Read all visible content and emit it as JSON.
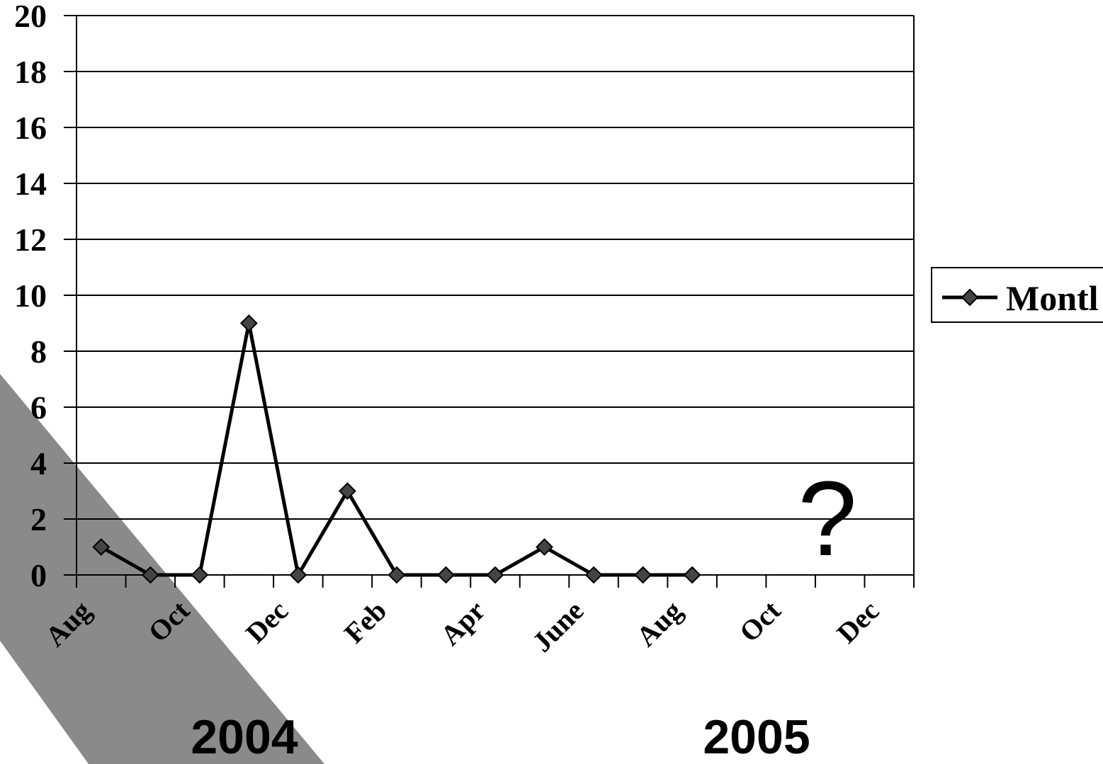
{
  "chart_data": {
    "type": "line",
    "categories": [
      "Aug",
      null,
      "Oct",
      null,
      "Dec",
      null,
      "Feb",
      null,
      "Apr",
      null,
      "June",
      null,
      "Aug",
      null,
      "Oct",
      null,
      "Dec"
    ],
    "series": [
      {
        "name": "Montl",
        "color": "#000000",
        "values": [
          1,
          0,
          0,
          9,
          0,
          3,
          0,
          0,
          0,
          1,
          0,
          0,
          0,
          null,
          null,
          null,
          null
        ]
      }
    ],
    "ylim": [
      0,
      20
    ],
    "yticks": [
      0,
      2,
      4,
      6,
      8,
      10,
      12,
      14,
      16,
      18,
      20
    ],
    "grid": true,
    "annotations": [
      "2004",
      "2005",
      "?"
    ]
  }
}
